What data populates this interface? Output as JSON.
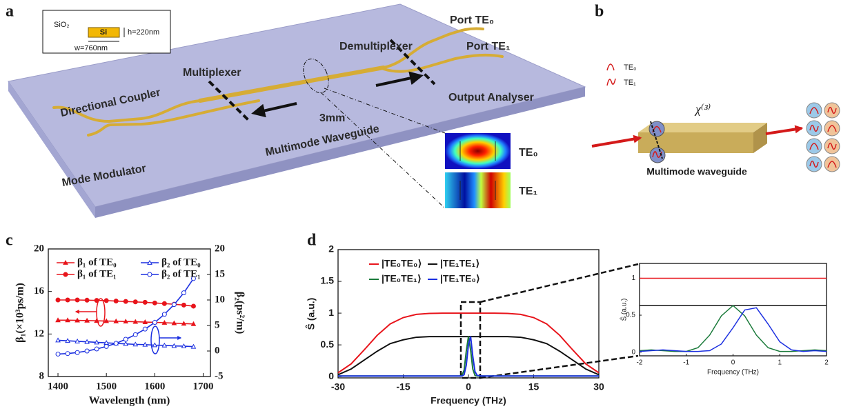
{
  "figure": {
    "panel_labels": [
      "a",
      "b",
      "c",
      "d"
    ],
    "a": {
      "cladding": "SiO₂",
      "core": "Si",
      "height": "h=220nm",
      "width": "w=760nm",
      "port_te0": "Port TE₀",
      "port_te1": "Port TE₁",
      "demultiplexer": "Demultiplexer",
      "multiplexer": "Multiplexer",
      "directional_coupler": "Directional Coupler",
      "length": "3mm",
      "output_analyser": "Output Analyser",
      "multimode_waveguide": "Multimode Waveguide",
      "mode_modulator": "Mode Modulator",
      "mode_te0": "TE₀",
      "mode_te1": "TE₁"
    },
    "b": {
      "legend_te0": "TE₀",
      "legend_te1": "TE₁",
      "nonlinearity": "χ⁽³⁾",
      "waveguide": "Multimode waveguide"
    }
  },
  "chart_data": [
    {
      "type": "line",
      "xlabel": "Wavelength (nm)",
      "ylabel": "β₁(×10³ps/m)",
      "y2label": "β₂(ps²/m)",
      "x": [
        1400,
        1420,
        1440,
        1460,
        1480,
        1500,
        1520,
        1540,
        1560,
        1580,
        1600,
        1620,
        1640,
        1660,
        1680
      ],
      "xlim": [
        1380,
        1715
      ],
      "xticks": [
        1400,
        1500,
        1600,
        1700
      ],
      "ylim": [
        8,
        20
      ],
      "yticks": [
        8,
        12,
        16,
        20
      ],
      "y2lim": [
        -5,
        20
      ],
      "y2ticks": [
        -5,
        0,
        5,
        10,
        15,
        20
      ],
      "legend": "top-left",
      "series": [
        {
          "name": "β₁ of TE₀",
          "color": "#e8141b",
          "marker": "triangle",
          "values": [
            13.3,
            13.3,
            13.28,
            13.26,
            13.24,
            13.22,
            13.2,
            13.18,
            13.15,
            13.12,
            13.1,
            13.06,
            13.02,
            12.98,
            12.94
          ]
        },
        {
          "name": "β₁ of TE₁",
          "color": "#e8141b",
          "marker": "circle",
          "values": [
            15.2,
            15.2,
            15.2,
            15.18,
            15.16,
            15.14,
            15.1,
            15.06,
            15.02,
            14.98,
            14.92,
            14.86,
            14.8,
            14.72,
            14.62
          ]
        },
        {
          "name": "β₂ of TE₀",
          "color": "#1a2ee0",
          "marker": "triangle-open",
          "axis": "y2",
          "values": [
            2.1,
            2.0,
            1.9,
            1.8,
            1.7,
            1.6,
            1.5,
            1.4,
            1.3,
            1.25,
            1.15,
            1.1,
            1.0,
            0.95,
            0.85
          ]
        },
        {
          "name": "β₂ of TE₁",
          "color": "#1a2ee0",
          "marker": "circle-open",
          "axis": "y2",
          "values": [
            -0.6,
            -0.5,
            -0.3,
            0,
            0.4,
            0.9,
            1.5,
            2.3,
            3.2,
            4.3,
            5.6,
            7.2,
            9.1,
            11.4,
            14.2
          ]
        }
      ]
    },
    {
      "type": "line",
      "xlabel": "Frequency (THz)",
      "ylabel": "Ŝ (a.u.)",
      "x": [
        -30,
        -27,
        -24,
        -21,
        -18,
        -15,
        -12,
        -9,
        -6,
        -3,
        -2,
        -1.5,
        -1,
        -0.5,
        0,
        0.5,
        1,
        1.5,
        2,
        3,
        6,
        9,
        12,
        15,
        18,
        21,
        24,
        27,
        30
      ],
      "xlim": [
        -30,
        30
      ],
      "xticks": [
        -30,
        -15,
        0,
        15,
        30
      ],
      "ylim": [
        -0.02,
        2
      ],
      "yticks": [
        0,
        0.5,
        1,
        1.5,
        2
      ],
      "legend": "top-left",
      "series": [
        {
          "name": "|TE₀TE₀⟩",
          "color": "#e8141b",
          "values": [
            0.06,
            0.2,
            0.42,
            0.65,
            0.83,
            0.93,
            0.98,
            0.995,
            1,
            1,
            1,
            1,
            1,
            1,
            1,
            1,
            1,
            1,
            1,
            1,
            1,
            0.995,
            0.98,
            0.93,
            0.83,
            0.65,
            0.42,
            0.2,
            0.06
          ]
        },
        {
          "name": "|TE₁TE₁⟩",
          "color": "#111111",
          "values": [
            0.03,
            0.12,
            0.26,
            0.4,
            0.52,
            0.58,
            0.62,
            0.63,
            0.63,
            0.63,
            0.63,
            0.63,
            0.63,
            0.63,
            0.63,
            0.63,
            0.63,
            0.63,
            0.63,
            0.63,
            0.63,
            0.63,
            0.62,
            0.58,
            0.52,
            0.4,
            0.26,
            0.12,
            0.03
          ]
        },
        {
          "name": "|TE₀TE₁⟩",
          "color": "#1a7a3a",
          "values": [
            0.01,
            0.01,
            0.01,
            0.01,
            0.01,
            0.01,
            0.01,
            0.01,
            0.01,
            0.01,
            0.01,
            0.02,
            0.1,
            0.4,
            0.63,
            0.42,
            0.12,
            0.02,
            0.01,
            0.01,
            0.01,
            0.01,
            0.01,
            0.01,
            0.01,
            0.01,
            0.01,
            0.01,
            0.01
          ]
        },
        {
          "name": "|TE₁TE₀⟩",
          "color": "#1a2ee0",
          "values": [
            0.01,
            0.01,
            0.01,
            0.01,
            0.01,
            0.01,
            0.01,
            0.01,
            0.01,
            0.01,
            0.01,
            0.01,
            0.03,
            0.18,
            0.5,
            0.63,
            0.32,
            0.08,
            0.02,
            0.01,
            0.01,
            0.01,
            0.01,
            0.01,
            0.01,
            0.01,
            0.01,
            0.01,
            0.01
          ]
        }
      ]
    },
    {
      "type": "line",
      "xlabel": "Frequency (THz)",
      "ylabel": "Ŝ (a.u.)",
      "x": [
        -2,
        -1.75,
        -1.5,
        -1.25,
        -1,
        -0.75,
        -0.5,
        -0.25,
        0,
        0.25,
        0.5,
        0.75,
        1,
        1.25,
        1.5,
        1.75,
        2
      ],
      "xlim": [
        -2,
        2
      ],
      "xticks": [
        -2,
        -1,
        0,
        1,
        2
      ],
      "ylim": [
        -0.05,
        1.2
      ],
      "yticks": [
        0,
        0.5,
        1
      ],
      "series": [
        {
          "color": "#e8141b",
          "values": [
            1,
            1,
            1,
            1,
            1,
            1,
            1,
            1,
            1,
            1,
            1,
            1,
            1,
            1,
            1,
            1,
            1
          ]
        },
        {
          "color": "#111111",
          "values": [
            0.63,
            0.63,
            0.63,
            0.63,
            0.63,
            0.63,
            0.63,
            0.63,
            0.63,
            0.63,
            0.63,
            0.63,
            0.63,
            0.63,
            0.63,
            0.63,
            0.63
          ]
        },
        {
          "color": "#1a7a3a",
          "values": [
            0.02,
            0.03,
            0.02,
            0.01,
            0.01,
            0.06,
            0.23,
            0.49,
            0.63,
            0.49,
            0.23,
            0.06,
            0.01,
            0.01,
            0.02,
            0.03,
            0.02
          ]
        },
        {
          "color": "#1a2ee0",
          "values": [
            0.01,
            0.02,
            0.03,
            0.02,
            0.01,
            0.01,
            0.02,
            0.11,
            0.33,
            0.57,
            0.6,
            0.38,
            0.14,
            0.03,
            0.01,
            0.02,
            0.01
          ]
        }
      ]
    }
  ]
}
